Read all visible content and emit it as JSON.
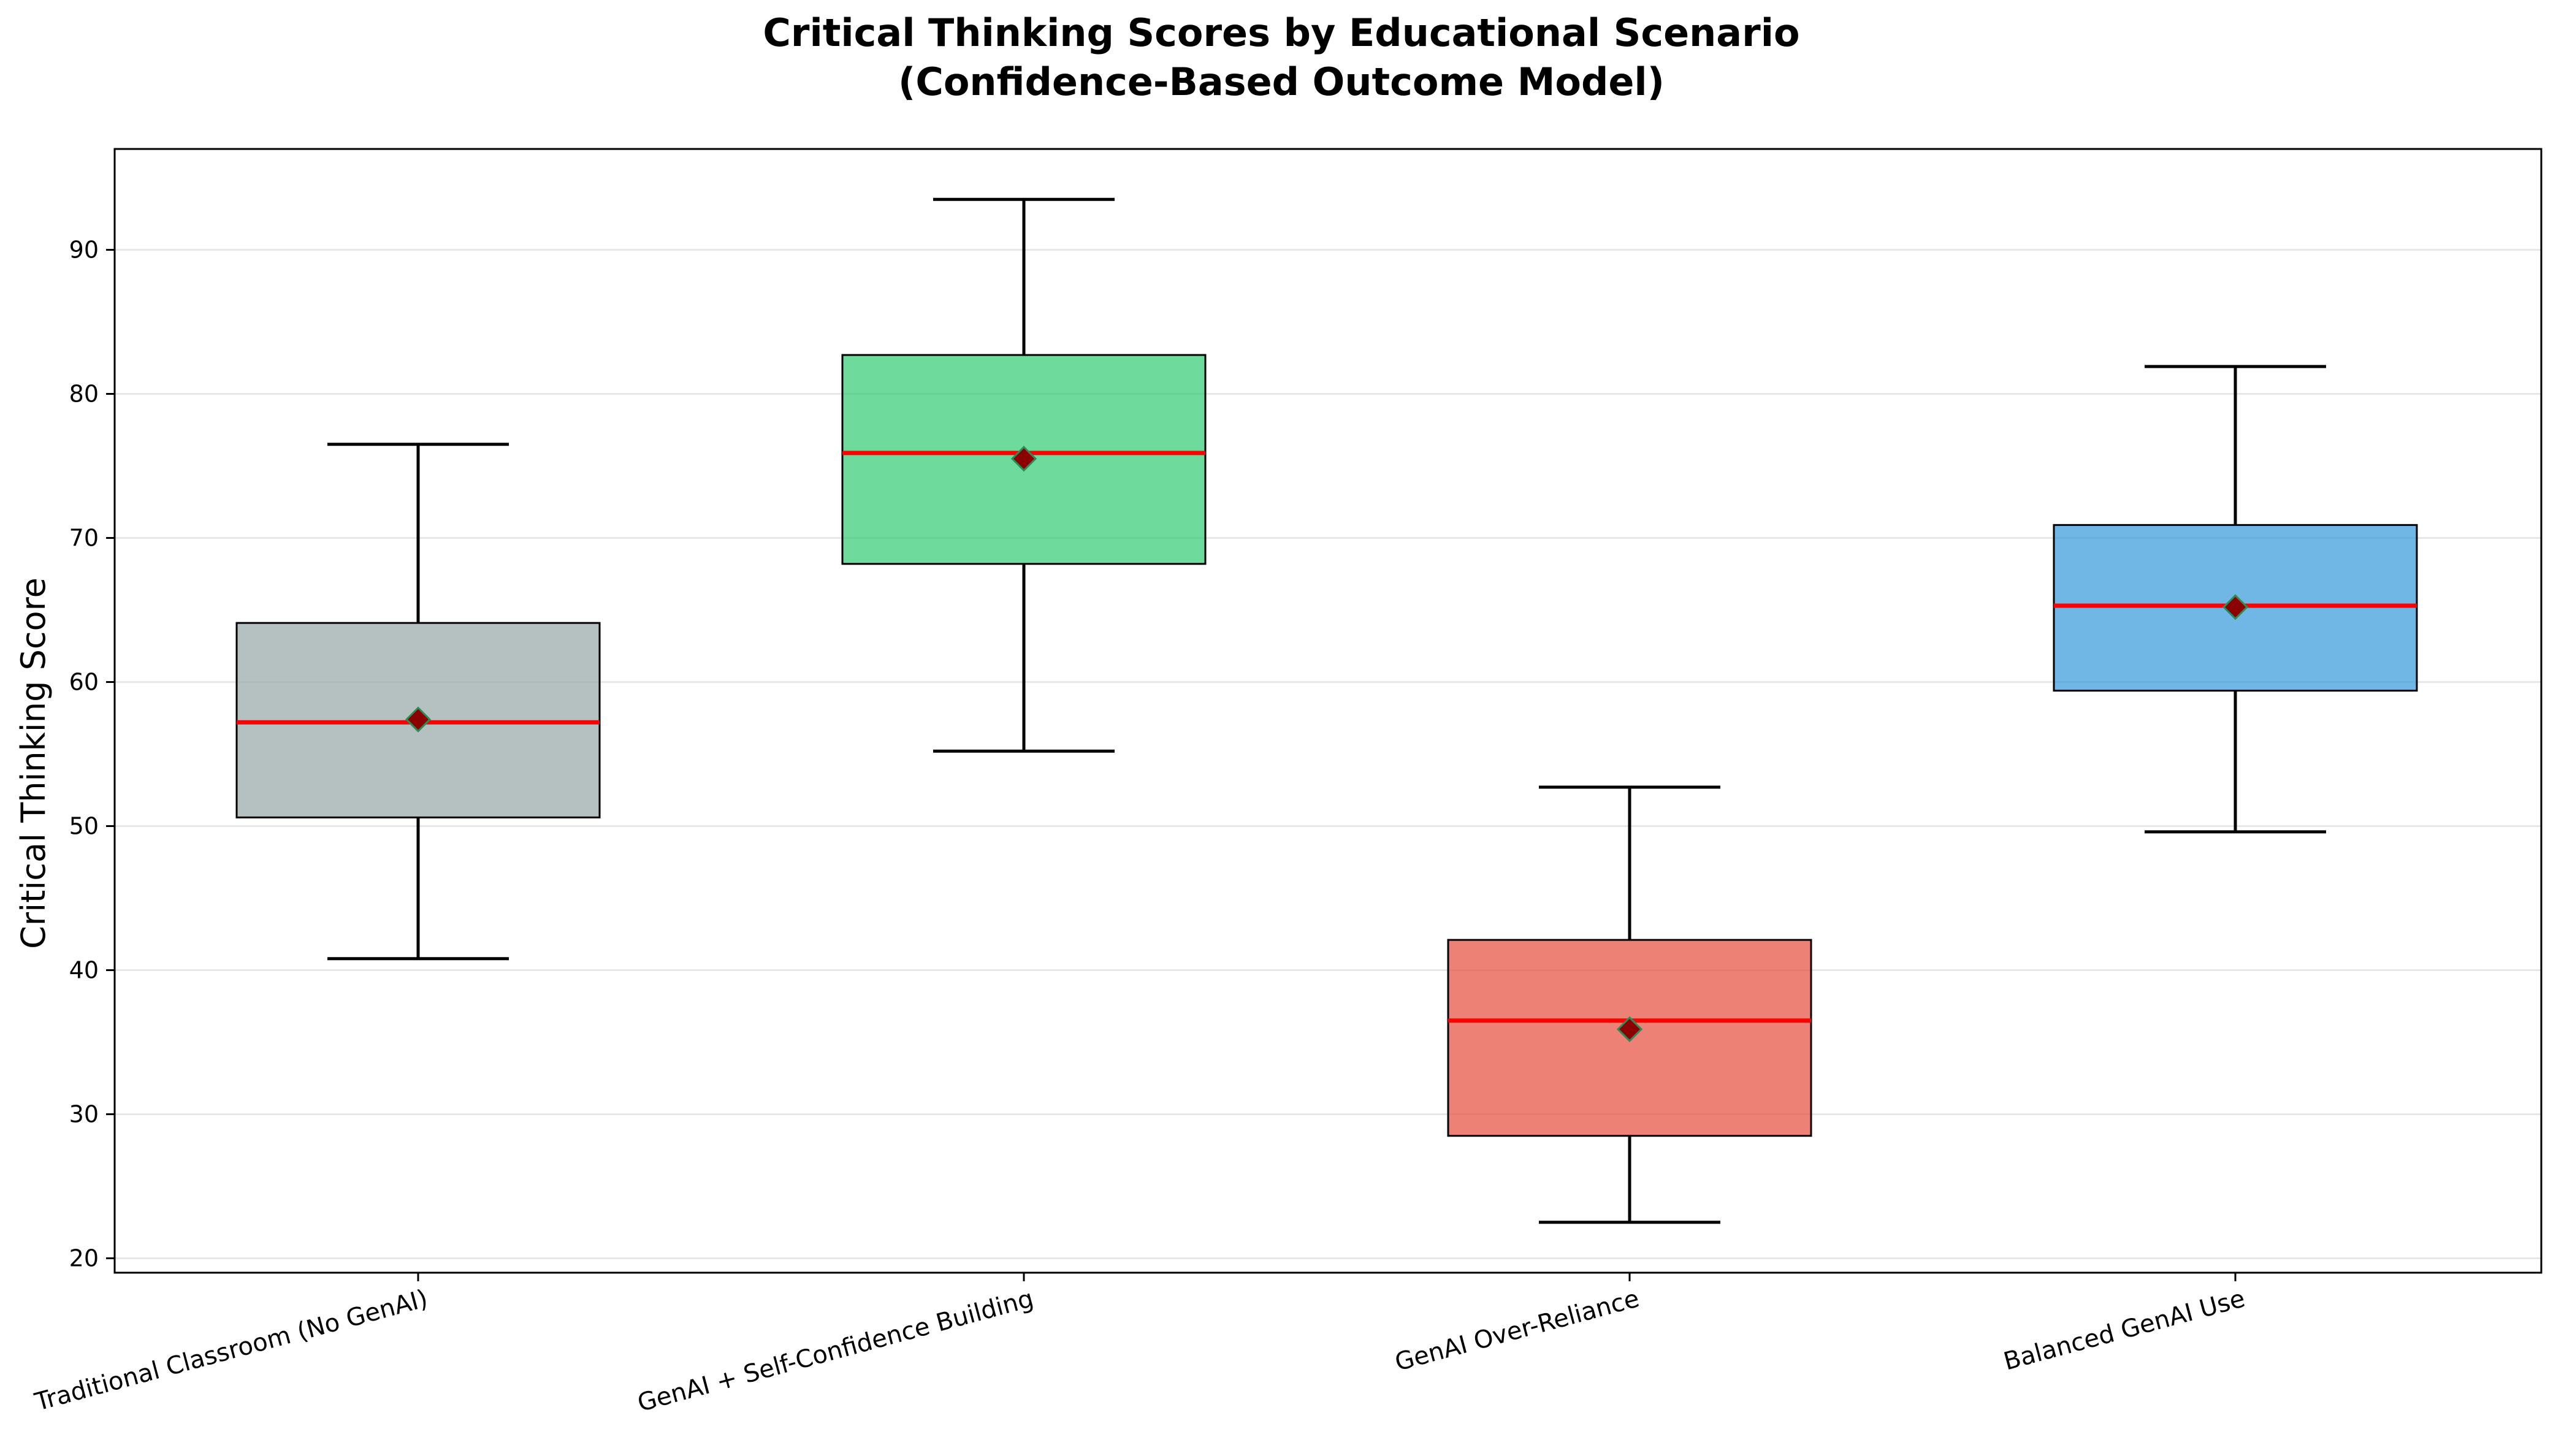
{
  "chart_data": {
    "type": "box",
    "title": "Critical Thinking Scores by Educational Scenario",
    "subtitle": "(Confidence-Based Outcome Model)",
    "xlabel": "",
    "ylabel": "Critical Thinking Score",
    "ylim": [
      19,
      97
    ],
    "yticks": [
      20,
      30,
      40,
      50,
      60,
      70,
      80,
      90
    ],
    "grid": "y",
    "categories": [
      "Traditional Classroom (No GenAI)",
      "GenAI + Self-Confidence Building",
      "GenAI Over-Reliance",
      "Balanced GenAI Use"
    ],
    "boxes": [
      {
        "whisker_low": 40.8,
        "q1": 50.6,
        "median": 57.2,
        "q3": 64.1,
        "whisker_high": 76.5,
        "mean": 57.4,
        "color": "#95a5a6"
      },
      {
        "whisker_low": 55.2,
        "q1": 68.2,
        "median": 75.9,
        "q3": 82.7,
        "whisker_high": 93.5,
        "mean": 75.5,
        "color": "#2ecc71"
      },
      {
        "whisker_low": 22.5,
        "q1": 28.5,
        "median": 36.5,
        "q3": 42.1,
        "whisker_high": 52.7,
        "mean": 35.9,
        "color": "#e74c3c"
      },
      {
        "whisker_low": 49.6,
        "q1": 59.4,
        "median": 65.3,
        "q3": 70.9,
        "whisker_high": 81.9,
        "mean": 65.2,
        "color": "#3498db"
      }
    ],
    "median_color": "#ff0000",
    "mean_marker_color": "#8b0000",
    "mean_marker_edge": "#2e8b57"
  }
}
